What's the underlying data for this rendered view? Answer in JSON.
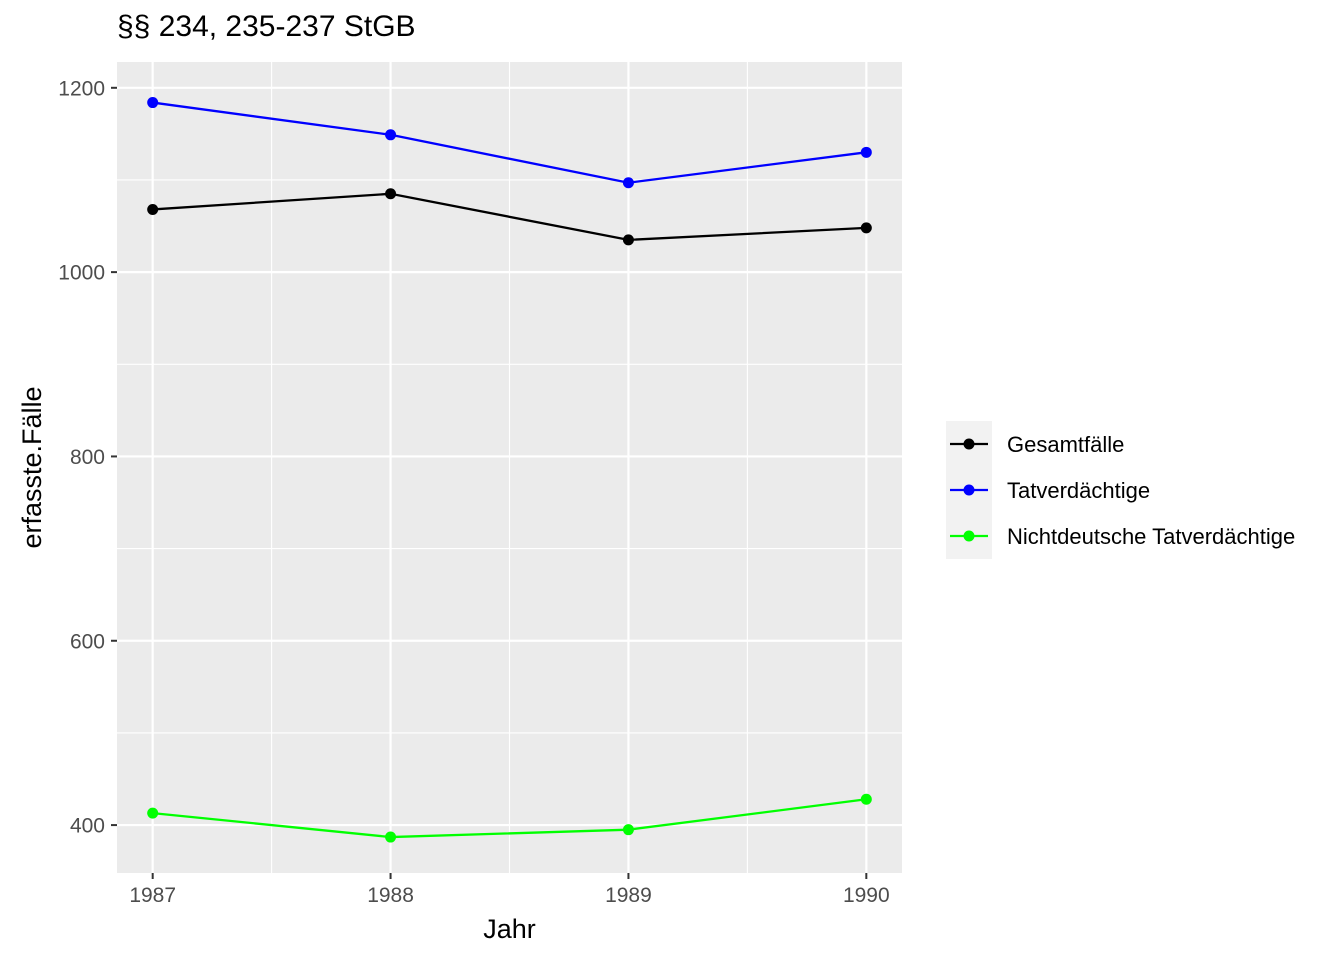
{
  "chart_data": {
    "type": "line",
    "title": "§§ 234, 235-237 StGB",
    "xlabel": "Jahr",
    "ylabel": "erfasste.Fälle",
    "x": [
      1987,
      1988,
      1989,
      1990
    ],
    "x_ticks": [
      "1987",
      "1988",
      "1989",
      "1990"
    ],
    "xlim": [
      1986.85,
      1990.15
    ],
    "ylim": [
      348,
      1228
    ],
    "y_ticks": [
      "400",
      "600",
      "800",
      "1000",
      "1200"
    ],
    "grid": true,
    "legend_position": "right",
    "series": [
      {
        "name": "Gesamtfälle",
        "color": "#000000",
        "values": [
          1068,
          1085,
          1035,
          1048
        ]
      },
      {
        "name": "Tatverdächtige",
        "color": "#0000ff",
        "values": [
          1184,
          1149,
          1097,
          1130
        ]
      },
      {
        "name": "Nichtdeutsche Tatverdächtige",
        "color": "#00ff00",
        "values": [
          413,
          387,
          395,
          428
        ]
      }
    ]
  }
}
